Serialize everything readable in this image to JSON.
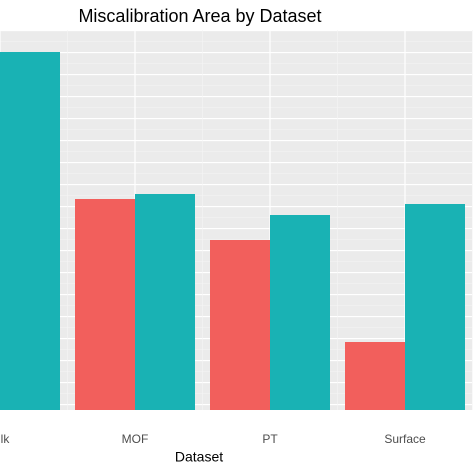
{
  "chart_data": {
    "type": "bar",
    "title": "Miscalibration Area by Dataset",
    "x_label": "Dataset",
    "categories": [
      "lk",
      "MOF",
      "PT",
      "Surface"
    ],
    "series": [
      {
        "color": "#f25f5c",
        "values": [
          null,
          211,
          170,
          68
        ]
      },
      {
        "color": "#19b2b4",
        "values": [
          358,
          216,
          195,
          206
        ]
      }
    ],
    "ylim": [
      0,
      380
    ]
  }
}
